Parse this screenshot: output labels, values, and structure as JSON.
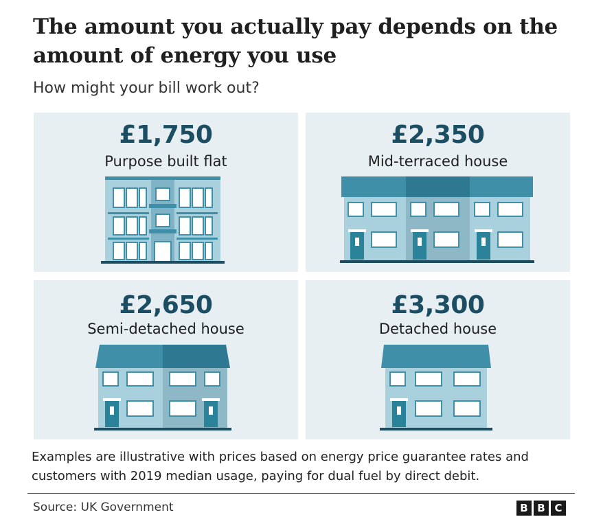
{
  "header": {
    "title": "The amount you actually pay depends on the amount of energy you use",
    "subtitle": "How might your bill work out?"
  },
  "cards": [
    {
      "price": "£1,750",
      "label": "Purpose built flat",
      "icon": "flat-building-icon"
    },
    {
      "price": "£2,350",
      "label": "Mid-terraced house",
      "icon": "terraced-house-icon"
    },
    {
      "price": "£2,650",
      "label": "Semi-detached house",
      "icon": "semi-detached-house-icon"
    },
    {
      "price": "£3,300",
      "label": "Detached house",
      "icon": "detached-house-icon"
    }
  ],
  "footer": {
    "note": "Examples are illustrative with prices based on energy price guarantee rates and customers with 2019 median usage, paying for dual fuel by direct debit.",
    "source": "Source: UK Government",
    "logo_letters": [
      "B",
      "B",
      "C"
    ]
  },
  "colors": {
    "card_bg": "#e8eff2",
    "price_text": "#1c4e63",
    "roof": "#3f8fa8",
    "roof_dark": "#2f7891",
    "wall_light": "#a9d0dd",
    "wall_mid": "#8fb8c7",
    "door": "#2b8399",
    "ground": "#1c4e63"
  }
}
